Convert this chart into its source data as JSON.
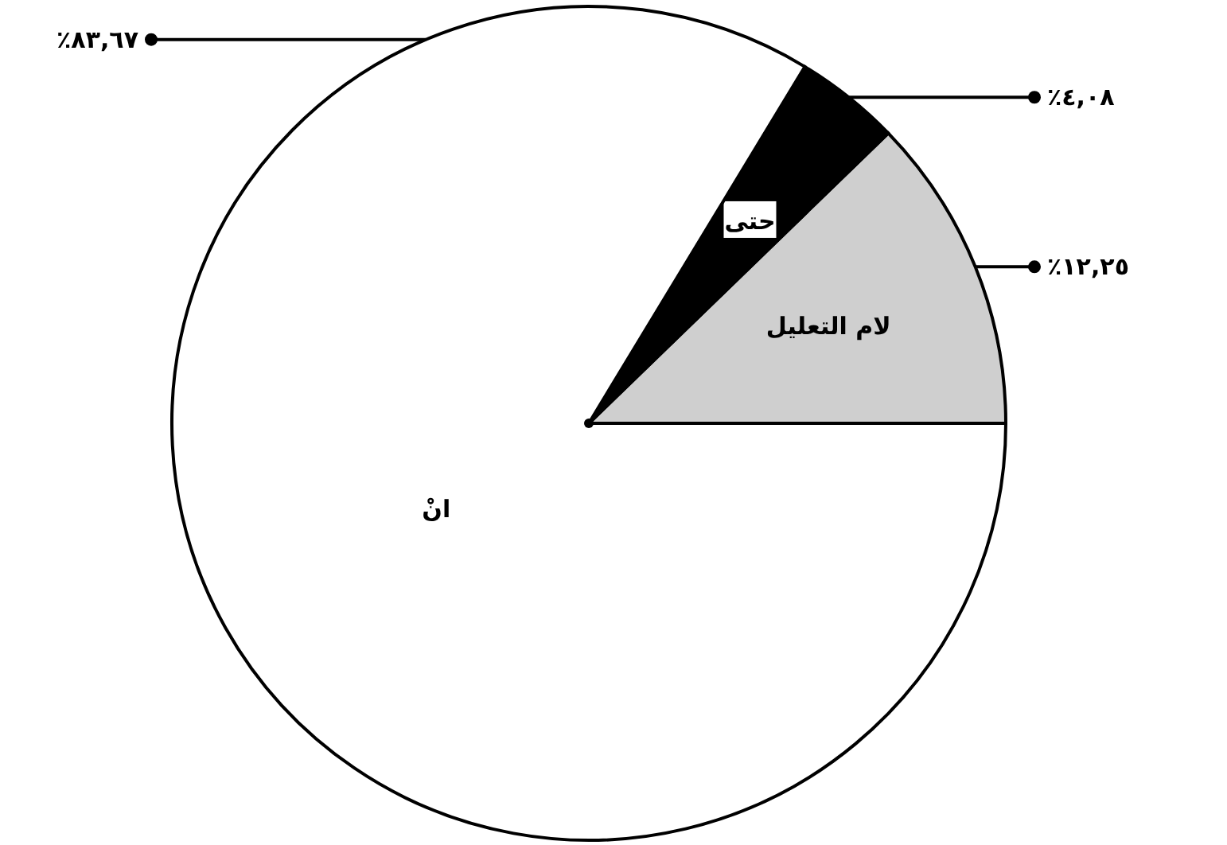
{
  "chart_data": {
    "type": "pie",
    "categories": [
      "لام التعليل",
      "حتى",
      "انْ"
    ],
    "values": [
      12.25,
      4.08,
      83.67
    ],
    "colors": [
      "#cfcfcf",
      "#000000",
      "#ffffff"
    ],
    "value_labels": [
      "٪١٢,٢٥",
      "٪٤,٠٨",
      "٪٨٣,٦٧"
    ]
  }
}
